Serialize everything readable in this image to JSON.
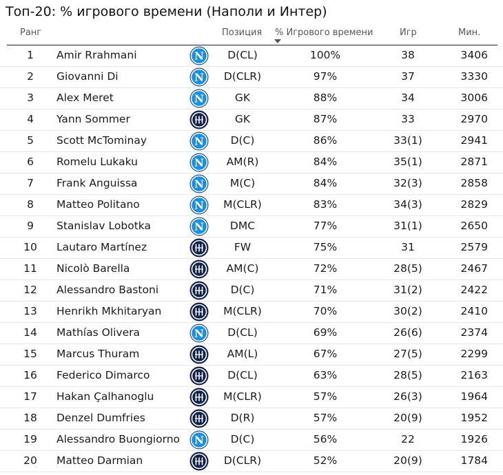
{
  "title": "Топ-20: % игрового времени (Наполи и Интер)",
  "columns": {
    "rank": "Ранг",
    "position": "Позиция",
    "pct": "% Игрового времени",
    "games": "Игр",
    "mins": "Мин."
  },
  "colors": {
    "napoli": "#1d8fdc",
    "inter": "#12224a"
  },
  "rows": [
    {
      "rank": "1",
      "name": "Amir Rrahmani",
      "club": "napoli",
      "position": "D(CL)",
      "pct": "100%",
      "games": "38",
      "mins": "3406"
    },
    {
      "rank": "2",
      "name": "Giovanni Di",
      "club": "napoli",
      "position": "D(CLR)",
      "pct": "97%",
      "games": "37",
      "mins": "3330"
    },
    {
      "rank": "3",
      "name": "Alex Meret",
      "club": "napoli",
      "position": "GK",
      "pct": "88%",
      "games": "34",
      "mins": "3006"
    },
    {
      "rank": "4",
      "name": "Yann Sommer",
      "club": "inter",
      "position": "GK",
      "pct": "87%",
      "games": "33",
      "mins": "2970"
    },
    {
      "rank": "5",
      "name": "Scott McTominay",
      "club": "napoli",
      "position": "D(C)",
      "pct": "86%",
      "games": "33(1)",
      "mins": "2941"
    },
    {
      "rank": "6",
      "name": "Romelu Lukaku",
      "club": "napoli",
      "position": "AM(R)",
      "pct": "84%",
      "games": "35(1)",
      "mins": "2871"
    },
    {
      "rank": "7",
      "name": "Frank Anguissa",
      "club": "napoli",
      "position": "M(C)",
      "pct": "84%",
      "games": "32(3)",
      "mins": "2858"
    },
    {
      "rank": "8",
      "name": "Matteo Politano",
      "club": "napoli",
      "position": "M(CLR)",
      "pct": "83%",
      "games": "34(3)",
      "mins": "2829"
    },
    {
      "rank": "9",
      "name": "Stanislav Lobotka",
      "club": "napoli",
      "position": "DMC",
      "pct": "77%",
      "games": "31(1)",
      "mins": "2650"
    },
    {
      "rank": "10",
      "name": "Lautaro Martínez",
      "club": "inter",
      "position": "FW",
      "pct": "75%",
      "games": "31",
      "mins": "2579"
    },
    {
      "rank": "11",
      "name": "Nicolò Barella",
      "club": "inter",
      "position": "AM(C)",
      "pct": "72%",
      "games": "28(5)",
      "mins": "2467"
    },
    {
      "rank": "12",
      "name": "Alessandro Bastoni",
      "club": "inter",
      "position": "D(C)",
      "pct": "71%",
      "games": "31(2)",
      "mins": "2422"
    },
    {
      "rank": "13",
      "name": "Henrikh Mkhitaryan",
      "club": "inter",
      "position": "M(CLR)",
      "pct": "70%",
      "games": "30(2)",
      "mins": "2410"
    },
    {
      "rank": "14",
      "name": "Mathías Olivera",
      "club": "napoli",
      "position": "D(CL)",
      "pct": "69%",
      "games": "26(6)",
      "mins": "2374"
    },
    {
      "rank": "15",
      "name": "Marcus Thuram",
      "club": "inter",
      "position": "AM(L)",
      "pct": "67%",
      "games": "27(5)",
      "mins": "2299"
    },
    {
      "rank": "16",
      "name": "Federico Dimarco",
      "club": "inter",
      "position": "D(CL)",
      "pct": "63%",
      "games": "28(5)",
      "mins": "2163"
    },
    {
      "rank": "17",
      "name": "Hakan Çalhanoglu",
      "club": "inter",
      "position": "M(CLR)",
      "pct": "57%",
      "games": "26(3)",
      "mins": "1964"
    },
    {
      "rank": "18",
      "name": "Denzel Dumfries",
      "club": "inter",
      "position": "D(R)",
      "pct": "57%",
      "games": "20(9)",
      "mins": "1952"
    },
    {
      "rank": "19",
      "name": "Alessandro Buongiorno",
      "club": "napoli",
      "position": "D(C)",
      "pct": "56%",
      "games": "22",
      "mins": "1926"
    },
    {
      "rank": "20",
      "name": "Matteo Darmian",
      "club": "inter",
      "position": "D(CLR)",
      "pct": "52%",
      "games": "20(9)",
      "mins": "1784"
    }
  ]
}
